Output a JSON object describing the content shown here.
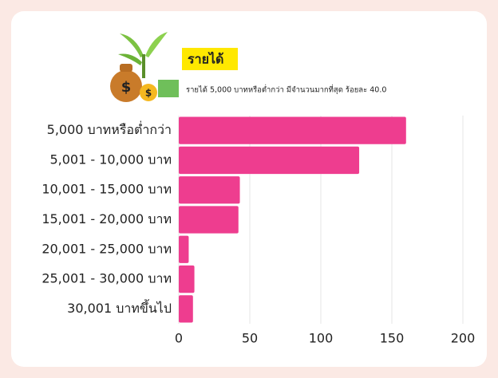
{
  "chart_data": {
    "type": "bar",
    "orientation": "horizontal",
    "title": "รายได้",
    "subtitle": "รายได้ 5,000 บาทหรือต่ำกว่า มีจำนวนมากที่สุด ร้อยละ 40.0",
    "categories": [
      "5,000 บาทหรือต่ำกว่า",
      "5,001 - 10,000 บาท",
      "10,001 - 15,000 บาท",
      "15,001 - 20,000 บาท",
      "20,001 - 25,000 บาท",
      "25,001 - 30,000 บาท",
      "30,001 บาทขึ้นไป"
    ],
    "values": [
      160,
      127,
      43,
      42,
      7,
      11,
      10
    ],
    "color": "#ee3d8f",
    "xlim": [
      0,
      200
    ],
    "xticks": [
      0,
      50,
      100,
      150,
      200
    ],
    "grid": true
  }
}
